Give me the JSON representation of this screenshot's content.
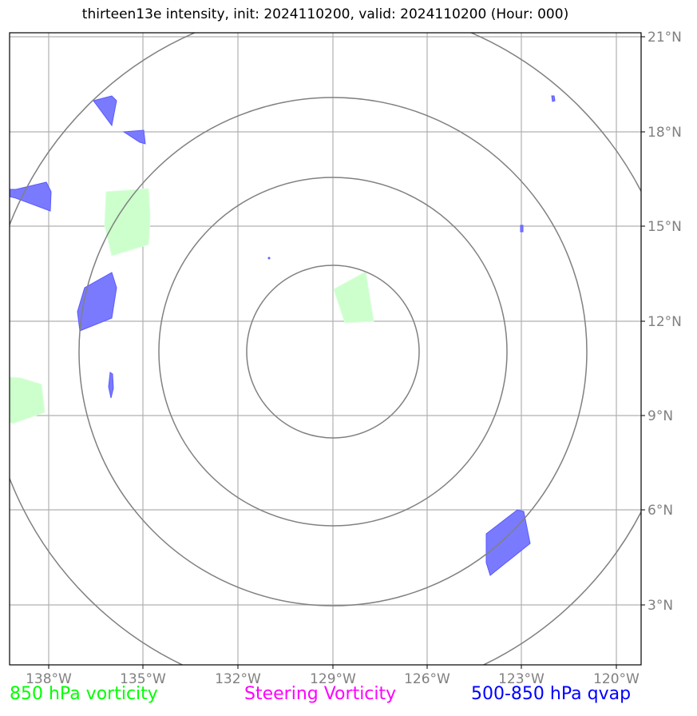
{
  "title": "thirteen13e intensity, init: 2024110200, valid: 2024110200 (Hour: 000)",
  "map": {
    "lon_ticks": [
      "138°W",
      "135°W",
      "132°W",
      "129°W",
      "126°W",
      "123°W",
      "120°W"
    ],
    "lat_ticks": [
      "21°N",
      "18°N",
      "15°N",
      "12°N",
      "9°N",
      "6°N",
      "3°N"
    ],
    "colors": {
      "grid": "#b0b0b0",
      "range_rings": "#808080",
      "vorticity_850": "#ccffcc",
      "qvap_500_850": "#0000ff"
    }
  },
  "legend": {
    "vorticity_850": "850 hPa vorticity",
    "steering_vorticity": "Steering Vorticity",
    "qvap_500_850": "500-850 hPa qvap"
  }
}
